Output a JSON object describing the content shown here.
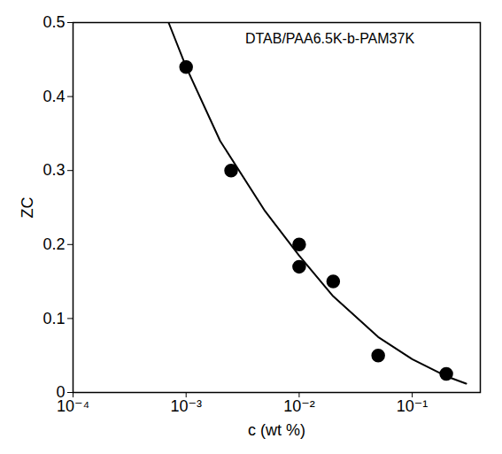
{
  "chart_data": {
    "type": "scatter",
    "title": "DTAB/PAA6.5K-b-PAM37K",
    "x_label": "c (wt %)",
    "y_label": "ZC",
    "log": "x",
    "grid": false,
    "xlim": [
      0.0001,
      0.4
    ],
    "ylim": [
      0,
      0.5
    ],
    "xticks": [
      {
        "value": 0.0001,
        "label": "10⁻⁴"
      },
      {
        "value": 0.001,
        "label": "10⁻³"
      },
      {
        "value": 0.01,
        "label": "10⁻²"
      },
      {
        "value": 0.1,
        "label": "10⁻¹"
      }
    ],
    "yticks": [
      0,
      0.1,
      0.2,
      0.3,
      0.4,
      0.5
    ],
    "series": [
      {
        "type": "scatter",
        "color": "#000000",
        "marker": "circle",
        "x": [
          0.001,
          0.0025,
          0.01,
          0.01,
          0.02,
          0.05,
          0.2
        ],
        "values": [
          0.44,
          0.3,
          0.2,
          0.17,
          0.15,
          0.05,
          0.025
        ]
      },
      {
        "type": "line",
        "color": "#000000",
        "line_style": "solid",
        "x": [
          0.0007,
          0.001,
          0.002,
          0.005,
          0.01,
          0.02,
          0.05,
          0.1,
          0.2,
          0.3
        ],
        "values": [
          0.5,
          0.44,
          0.34,
          0.245,
          0.185,
          0.13,
          0.075,
          0.045,
          0.022,
          0.012
        ]
      }
    ]
  }
}
